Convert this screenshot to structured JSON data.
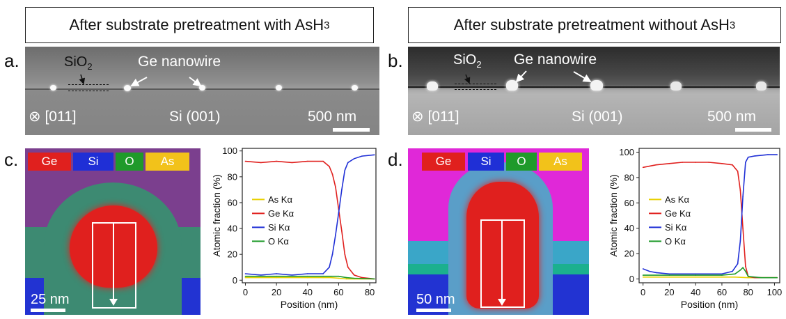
{
  "panel_a": {
    "title": "After substrate pretreatment with AsH",
    "title_sub": "3",
    "letter": "a.",
    "oxide": "SiO",
    "oxide_sub": "2",
    "nanowire": "Ge nanowire",
    "direction": "[011]",
    "substrate": "Si (001)",
    "scale_num": "500",
    "scale_unit": "nm"
  },
  "panel_b": {
    "title": "After substrate pretreatment without AsH",
    "title_sub": "3",
    "letter": "b.",
    "oxide": "SiO",
    "oxide_sub": "2",
    "nanowire": "Ge nanowire",
    "direction": "[011]",
    "substrate": "Si (001)",
    "scale": "500 nm"
  },
  "panel_c": {
    "letter": "c.",
    "legend": [
      "Ge",
      "Si",
      "O",
      "As"
    ],
    "scale": "25 nm"
  },
  "panel_d": {
    "letter": "d.",
    "legend": [
      "Ge",
      "Si",
      "O",
      "As"
    ],
    "scale": "50 nm"
  },
  "colors": {
    "ge": "#e0201e",
    "si": "#1f2fd6",
    "o": "#1f9a2a",
    "as": "#f2c21a"
  },
  "chart_data": [
    {
      "type": "line",
      "xlabel": "Position (nm)",
      "ylabel": "Atomic fraction (%)",
      "xlim": [
        -2,
        84
      ],
      "ylim": [
        -2,
        102
      ],
      "xticks": [
        0,
        20,
        40,
        60,
        80
      ],
      "yticks": [
        0,
        20,
        40,
        60,
        80,
        100
      ],
      "legend_position": "center-left",
      "series": [
        {
          "name": "As Kα",
          "color": "#e8d000",
          "x": [
            0,
            20,
            40,
            50,
            55,
            60,
            65,
            70,
            83
          ],
          "y": [
            2,
            2,
            2,
            2,
            2,
            1.5,
            1,
            1,
            1
          ]
        },
        {
          "name": "Ge Kα",
          "color": "#e0201e",
          "x": [
            0,
            10,
            20,
            30,
            40,
            50,
            54,
            56,
            58,
            60,
            62,
            64,
            66,
            70,
            75,
            83
          ],
          "y": [
            92,
            91,
            92,
            91,
            92,
            92,
            88,
            82,
            72,
            55,
            38,
            20,
            10,
            4,
            2,
            1
          ]
        },
        {
          "name": "Si Kα",
          "color": "#1f2fd6",
          "x": [
            0,
            10,
            20,
            30,
            40,
            50,
            54,
            56,
            58,
            60,
            62,
            64,
            66,
            70,
            75,
            83
          ],
          "y": [
            5,
            4,
            5,
            4,
            5,
            5,
            10,
            20,
            35,
            52,
            70,
            85,
            91,
            94,
            96,
            97
          ]
        },
        {
          "name": "O Kα",
          "color": "#1f9a2a",
          "x": [
            0,
            20,
            40,
            50,
            55,
            60,
            65,
            70,
            83
          ],
          "y": [
            3,
            3,
            3,
            3,
            3,
            3,
            2,
            1.5,
            1
          ]
        }
      ]
    },
    {
      "type": "line",
      "xlabel": "Position (nm)",
      "ylabel": "Atomic fraction (%)",
      "xlim": [
        -3,
        104
      ],
      "ylim": [
        -3,
        103
      ],
      "xticks": [
        0,
        20,
        40,
        60,
        80,
        100
      ],
      "yticks": [
        0,
        20,
        40,
        60,
        80,
        100
      ],
      "legend_position": "center-left",
      "series": [
        {
          "name": "As Kα",
          "color": "#e8d000",
          "x": [
            0,
            20,
            40,
            60,
            70,
            80,
            90,
            102
          ],
          "y": [
            1.5,
            1.5,
            1.5,
            1.5,
            1.5,
            1,
            1,
            1
          ]
        },
        {
          "name": "Ge Kα",
          "color": "#e0201e",
          "x": [
            0,
            10,
            20,
            30,
            40,
            50,
            60,
            68,
            72,
            74,
            76,
            78,
            80,
            85,
            95,
            102
          ],
          "y": [
            88,
            90,
            91,
            92,
            92,
            92,
            91,
            90,
            85,
            70,
            40,
            10,
            2,
            1,
            1,
            1
          ]
        },
        {
          "name": "Si Kα",
          "color": "#1f2fd6",
          "x": [
            0,
            5,
            10,
            20,
            40,
            60,
            68,
            72,
            74,
            76,
            78,
            80,
            85,
            95,
            102
          ],
          "y": [
            8,
            6,
            5,
            4,
            4,
            4,
            6,
            12,
            30,
            65,
            92,
            96,
            97,
            98,
            98
          ]
        },
        {
          "name": "O Kα",
          "color": "#1f9a2a",
          "x": [
            0,
            20,
            40,
            60,
            70,
            74,
            76,
            78,
            80,
            90,
            102
          ],
          "y": [
            3,
            3,
            3,
            3,
            4,
            7,
            9,
            6,
            2,
            1,
            1
          ]
        }
      ]
    }
  ]
}
